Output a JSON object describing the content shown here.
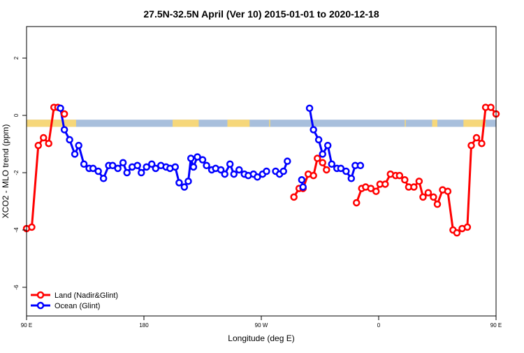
{
  "chart_data": {
    "type": "line",
    "title": "27.5N-32.5N April (Ver 10)   2015-01-01 to 2020-12-18",
    "xlabel": "Longitude (deg E)",
    "ylabel": "XCO2 - MLO trend (ppm)",
    "xlim": [
      -90,
      270
    ],
    "ylim": [
      -7,
      3.1
    ],
    "x_ticks": [
      {
        "value": -90,
        "label": "90 E"
      },
      {
        "value": 0,
        "label": "180"
      },
      {
        "value": 90,
        "label": "90 W"
      },
      {
        "value": 180,
        "label": "0"
      },
      {
        "value": 270,
        "label": "90 E"
      },
      {
        "value": 360,
        "label": "180"
      }
    ],
    "y_ticks": [
      {
        "value": 2,
        "label": "2"
      },
      {
        "value": 0,
        "label": "0"
      },
      {
        "value": -2,
        "label": "-2"
      },
      {
        "value": -4,
        "label": "-4"
      },
      {
        "value": -6,
        "label": "-6"
      }
    ],
    "legend_position": "bottom-left",
    "land_band": {
      "y_top": -0.15,
      "y_bottom": -0.4,
      "ocean_color": "#a8bfdc",
      "land_color": "#f6d77a"
    },
    "series": [
      {
        "name": "Land (Nadir&Glint)",
        "color": "#ff0000",
        "segments": [
          [
            [
              -90,
              -3.95
            ],
            [
              -86,
              -3.9
            ],
            [
              -81,
              -1.05
            ],
            [
              -77,
              -0.78
            ],
            [
              -73,
              -0.98
            ],
            [
              -69,
              0.28
            ],
            [
              -66,
              0.28
            ],
            [
              -61,
              0.05
            ]
          ],
          [
            [
              115,
              -2.85
            ],
            [
              119,
              -2.55
            ],
            [
              122,
              -2.55
            ],
            [
              126,
              -2.05
            ],
            [
              130,
              -2.1
            ],
            [
              133,
              -1.5
            ],
            [
              137,
              -1.65
            ],
            [
              140,
              -1.9
            ]
          ],
          [
            [
              163,
              -3.05
            ],
            [
              167,
              -2.55
            ],
            [
              170,
              -2.5
            ],
            [
              174,
              -2.55
            ],
            [
              178,
              -2.65
            ],
            [
              181,
              -2.4
            ],
            [
              185,
              -2.4
            ],
            [
              189,
              -2.05
            ],
            [
              193,
              -2.1
            ],
            [
              196,
              -2.1
            ],
            [
              200,
              -2.25
            ],
            [
              203,
              -2.5
            ],
            [
              207,
              -2.5
            ],
            [
              211,
              -2.3
            ],
            [
              214,
              -2.85
            ],
            [
              218,
              -2.7
            ],
            [
              222,
              -2.85
            ],
            [
              225,
              -3.1
            ],
            [
              229,
              -2.6
            ],
            [
              233,
              -2.65
            ],
            [
              237,
              -4.0
            ],
            [
              240,
              -4.1
            ],
            [
              244,
              -3.95
            ],
            [
              248,
              -3.9
            ],
            [
              251,
              -1.05
            ],
            [
              255,
              -0.78
            ],
            [
              259,
              -0.98
            ],
            [
              262,
              0.28
            ],
            [
              266,
              0.28
            ],
            [
              270,
              0.05
            ]
          ]
        ]
      },
      {
        "name": "Ocean (Glint)",
        "color": "#0000ff",
        "segments": [
          [
            [
              -64,
              0.25
            ],
            [
              -61,
              -0.5
            ],
            [
              -57,
              -0.85
            ],
            [
              -53,
              -1.35
            ],
            [
              -50,
              -1.05
            ],
            [
              -46,
              -1.7
            ],
            [
              -42,
              -1.85
            ],
            [
              -39,
              -1.85
            ],
            [
              -35,
              -1.95
            ],
            [
              -31,
              -2.2
            ],
            [
              -27,
              -1.75
            ],
            [
              -24,
              -1.75
            ],
            [
              -20,
              -1.85
            ],
            [
              -16,
              -1.65
            ],
            [
              -13,
              -2.0
            ],
            [
              -9,
              -1.8
            ],
            [
              -5,
              -1.75
            ],
            [
              -2,
              -2.0
            ],
            [
              2,
              -1.8
            ],
            [
              6,
              -1.7
            ],
            [
              9,
              -1.85
            ],
            [
              13,
              -1.75
            ],
            [
              17,
              -1.8
            ],
            [
              20,
              -1.85
            ],
            [
              24,
              -1.8
            ],
            [
              27,
              -2.35
            ],
            [
              31,
              -2.5
            ]
          ],
          [
            [
              34,
              -2.3
            ],
            [
              36,
              -1.5
            ],
            [
              38,
              -1.8
            ],
            [
              41,
              -1.45
            ],
            [
              45,
              -1.55
            ],
            [
              48,
              -1.75
            ],
            [
              52,
              -1.9
            ],
            [
              55,
              -1.85
            ],
            [
              59,
              -1.9
            ],
            [
              62,
              -2.05
            ],
            [
              66,
              -1.7
            ],
            [
              69,
              -2.05
            ],
            [
              73,
              -1.9
            ],
            [
              77,
              -2.05
            ],
            [
              80,
              -2.1
            ],
            [
              84,
              -2.05
            ],
            [
              87,
              -2.15
            ],
            [
              91,
              -2.05
            ],
            [
              94,
              -1.95
            ]
          ],
          [
            [
              101,
              -1.95
            ],
            [
              104,
              -2.05
            ],
            [
              107,
              -1.95
            ],
            [
              110,
              -1.6
            ]
          ],
          [
            [
              121,
              -2.25
            ],
            [
              122,
              -2.5
            ]
          ],
          [
            [
              127,
              0.25
            ],
            [
              130,
              -0.5
            ],
            [
              134,
              -0.85
            ],
            [
              137,
              -1.35
            ],
            [
              141,
              -1.05
            ],
            [
              144,
              -1.7
            ],
            [
              148,
              -1.85
            ],
            [
              151,
              -1.85
            ],
            [
              155,
              -1.95
            ],
            [
              159,
              -2.2
            ],
            [
              162,
              -1.75
            ],
            [
              166,
              -1.75
            ]
          ]
        ]
      }
    ]
  }
}
